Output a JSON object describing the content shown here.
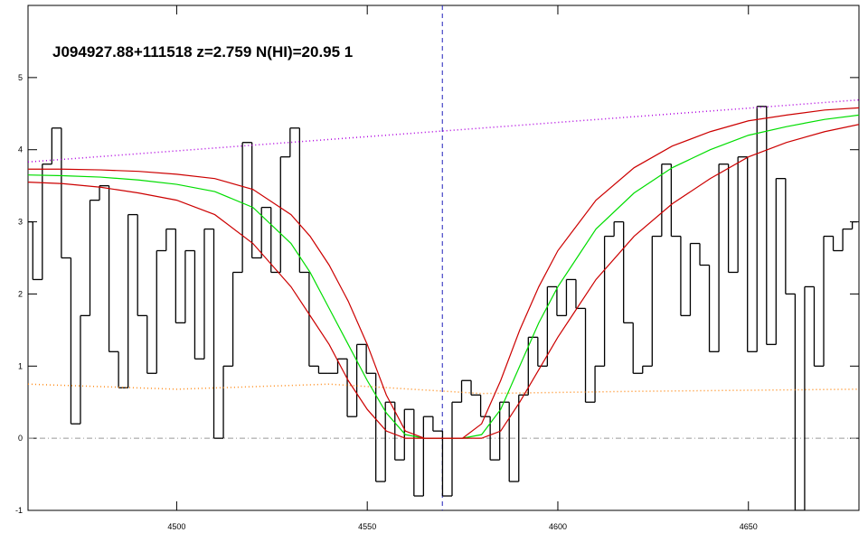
{
  "chart_data": {
    "type": "line",
    "title": "J094927.88+111518 z=2.759 N(HI)=20.95 1",
    "xlim": [
      4461,
      4679
    ],
    "ylim": [
      -1,
      6
    ],
    "xticks": [
      4500,
      4550,
      4600,
      4650
    ],
    "yticks": [
      -1,
      0,
      1,
      2,
      3,
      4,
      5
    ],
    "marker_x": 4569.7,
    "series": [
      {
        "color": "#000000",
        "style": "step",
        "x": [
          4461,
          4463.5,
          4466,
          4468.5,
          4471,
          4473.5,
          4476,
          4478.5,
          4481,
          4483.5,
          4486,
          4488.5,
          4491,
          4493.5,
          4496,
          4498.5,
          4501,
          4503.5,
          4506,
          4508.5,
          4511,
          4513.5,
          4516,
          4518.5,
          4521,
          4523.5,
          4526,
          4528.5,
          4531,
          4533.5,
          4536,
          4538.5,
          4541,
          4543.5,
          4546,
          4548.5,
          4551,
          4553.5,
          4556,
          4558.5,
          4561,
          4563.5,
          4566,
          4568.5,
          4571,
          4573.5,
          4576,
          4578.5,
          4581,
          4583.5,
          4586,
          4588.5,
          4591,
          4593.5,
          4596,
          4598.5,
          4601,
          4603.5,
          4606,
          4608.5,
          4611,
          4613.5,
          4616,
          4618.5,
          4621,
          4623.5,
          4626,
          4628.5,
          4631,
          4633.5,
          4636,
          4638.5,
          4641,
          4643.5,
          4646,
          4648.5,
          4651,
          4653.5,
          4656,
          4658.5,
          4661,
          4663.5,
          4666,
          4668.5,
          4671,
          4673.5,
          4676,
          4678.5
        ],
        "values": [
          3.0,
          2.2,
          3.8,
          4.3,
          2.5,
          0.2,
          1.7,
          3.3,
          3.5,
          1.2,
          0.7,
          3.1,
          1.7,
          0.9,
          2.6,
          2.9,
          1.6,
          2.6,
          1.1,
          2.9,
          0.0,
          1.0,
          2.3,
          4.1,
          2.5,
          3.2,
          2.3,
          3.9,
          4.3,
          2.3,
          1.0,
          0.9,
          0.9,
          1.1,
          0.3,
          1.3,
          0.9,
          -0.6,
          0.5,
          -0.3,
          0.4,
          -0.8,
          0.3,
          0.1,
          -0.8,
          0.5,
          0.8,
          0.6,
          0.3,
          -0.3,
          0.5,
          -0.6,
          0.6,
          1.4,
          1.0,
          2.1,
          1.7,
          2.2,
          1.8,
          0.5,
          1.0,
          2.8,
          3.0,
          1.6,
          0.9,
          1.0,
          2.8,
          3.8,
          2.8,
          1.7,
          2.7,
          2.4,
          1.2,
          3.8,
          2.3,
          3.9,
          1.2,
          4.6,
          1.3,
          3.6,
          2.0,
          -1.0,
          2.1,
          1.0,
          2.8,
          2.6,
          2.9,
          3.0
        ]
      },
      {
        "color": "#b000e0",
        "style": "dotted",
        "x": [
          4461,
          4679
        ],
        "values": [
          3.83,
          4.69
        ]
      },
      {
        "color": "#ff8c1a",
        "style": "dotted",
        "x": [
          4461,
          4500,
          4540,
          4580,
          4620,
          4679
        ],
        "values": [
          0.75,
          0.68,
          0.75,
          0.62,
          0.65,
          0.68
        ]
      },
      {
        "color": "#00dd00",
        "style": "solid",
        "x": [
          4461,
          4470,
          4480,
          4490,
          4500,
          4510,
          4520,
          4530,
          4535,
          4540,
          4545,
          4550,
          4555,
          4560,
          4565,
          4570,
          4575,
          4580,
          4585,
          4590,
          4595,
          4600,
          4610,
          4620,
          4630,
          4640,
          4650,
          4660,
          4670,
          4679
        ],
        "values": [
          3.65,
          3.64,
          3.62,
          3.58,
          3.52,
          3.42,
          3.2,
          2.7,
          2.3,
          1.8,
          1.3,
          0.8,
          0.35,
          0.05,
          0,
          0,
          0,
          0.05,
          0.4,
          1.0,
          1.6,
          2.1,
          2.9,
          3.4,
          3.75,
          4.0,
          4.2,
          4.32,
          4.42,
          4.48
        ]
      },
      {
        "color": "#cc0000",
        "style": "solid",
        "x": [
          4461,
          4470,
          4480,
          4490,
          4500,
          4510,
          4520,
          4530,
          4535,
          4540,
          4545,
          4550,
          4555,
          4560,
          4565,
          4570,
          4575,
          4580,
          4585,
          4590,
          4595,
          4600,
          4610,
          4620,
          4630,
          4640,
          4650,
          4660,
          4670,
          4679
        ],
        "values": [
          3.73,
          3.73,
          3.72,
          3.7,
          3.66,
          3.6,
          3.45,
          3.1,
          2.8,
          2.4,
          1.9,
          1.3,
          0.6,
          0.1,
          0,
          0,
          0,
          0.2,
          0.8,
          1.5,
          2.1,
          2.6,
          3.3,
          3.75,
          4.05,
          4.25,
          4.4,
          4.48,
          4.55,
          4.58
        ]
      },
      {
        "color": "#cc0000",
        "style": "solid",
        "x": [
          4461,
          4470,
          4480,
          4490,
          4500,
          4510,
          4520,
          4530,
          4535,
          4540,
          4545,
          4550,
          4555,
          4560,
          4565,
          4570,
          4575,
          4580,
          4585,
          4590,
          4595,
          4600,
          4610,
          4620,
          4630,
          4640,
          4650,
          4660,
          4670,
          4679
        ],
        "values": [
          3.55,
          3.53,
          3.48,
          3.4,
          3.3,
          3.1,
          2.7,
          2.1,
          1.7,
          1.3,
          0.8,
          0.4,
          0.1,
          0,
          0,
          0,
          0,
          0,
          0.1,
          0.5,
          0.95,
          1.4,
          2.2,
          2.8,
          3.25,
          3.6,
          3.9,
          4.1,
          4.25,
          4.35
        ]
      }
    ]
  }
}
